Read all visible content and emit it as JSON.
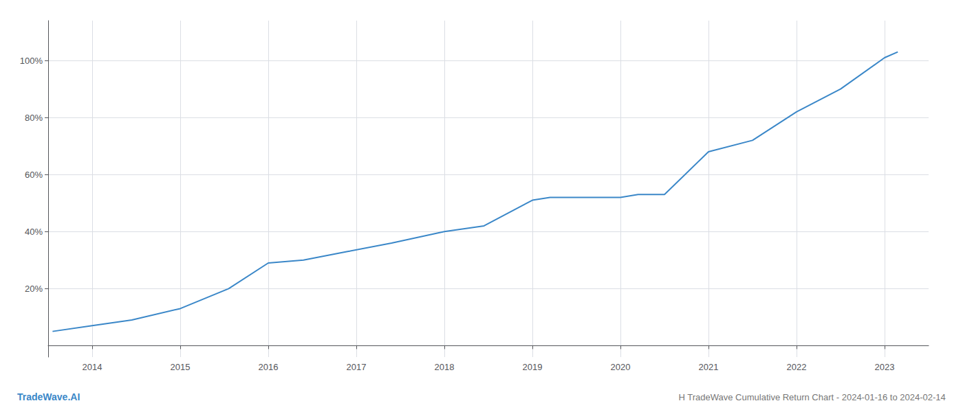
{
  "chart_data": {
    "type": "line",
    "title": "H TradeWave Cumulative Return Chart - 2024-01-16 to 2024-02-14",
    "annotations": [
      "TradeWave.AI"
    ],
    "x": [
      2013.55,
      2014.0,
      2014.45,
      2015.0,
      2015.55,
      2016.0,
      2016.4,
      2016.9,
      2017.4,
      2018.0,
      2018.45,
      2019.0,
      2019.2,
      2019.45,
      2019.7,
      2020.0,
      2020.2,
      2020.5,
      2021.0,
      2021.5,
      2022.0,
      2022.5,
      2023.0,
      2023.15
    ],
    "values": [
      0.05,
      0.07,
      0.09,
      0.13,
      0.2,
      0.29,
      0.3,
      0.33,
      0.36,
      0.4,
      0.42,
      0.51,
      0.52,
      0.52,
      0.52,
      0.52,
      0.53,
      0.53,
      0.68,
      0.72,
      0.82,
      0.9,
      1.01,
      1.03
    ],
    "color": "#3a87c8",
    "xlim": [
      2013.5,
      2023.5
    ],
    "ylim": [
      -0.04,
      1.14
    ],
    "xticks": [
      2014,
      2015,
      2016,
      2017,
      2018,
      2019,
      2020,
      2021,
      2022,
      2023
    ],
    "yticks": [
      {
        "value": 0.2,
        "label": "20%"
      },
      {
        "value": 0.4,
        "label": "40%"
      },
      {
        "value": 0.6,
        "label": "60%"
      },
      {
        "value": 0.8,
        "label": "80%"
      },
      {
        "value": 1.0,
        "label": "100%"
      }
    ],
    "grid": true
  }
}
